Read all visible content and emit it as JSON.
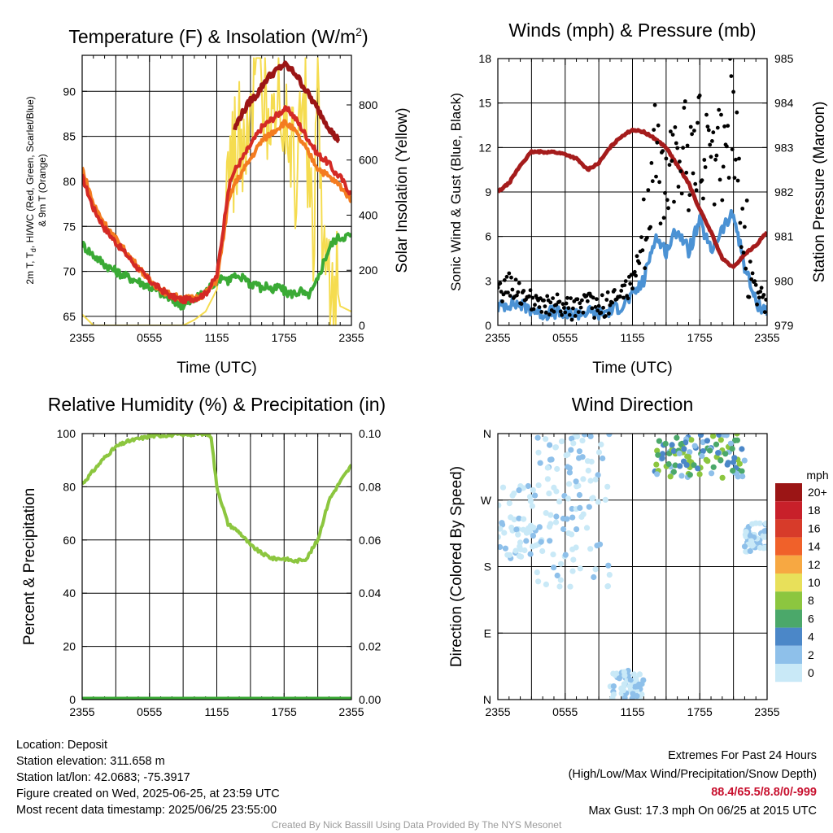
{
  "chart_data": [
    {
      "type": "line",
      "title": "Temperature (F) & Insolation (W/m2)",
      "xlabel": "Time (UTC)",
      "ylabel": "2m T, Td, HI/WC (Red, Green, Scarlet/Blue) & 9m T (Orange)",
      "ylabel_right": "Solar Insolation (Yellow)",
      "x_ticks": [
        "2355",
        "0555",
        "1155",
        "1755",
        "2355"
      ],
      "y_ticks": [
        65,
        70,
        75,
        80,
        85,
        90
      ],
      "y2_ticks": [
        0,
        200,
        400,
        600,
        800
      ],
      "ylim": [
        64,
        94
      ],
      "y2lim": [
        0,
        980
      ],
      "grid": true,
      "colors": {
        "temp2m": "#d42a25",
        "dewpoint": "#3aaa35",
        "heat_index": "#9b1515",
        "temp9m": "#f47c20",
        "insolation": "#f5dc50"
      },
      "x_hours": [
        0,
        1,
        2,
        3,
        4,
        5,
        6,
        7,
        8,
        9,
        10,
        11,
        12,
        12.5,
        13,
        13.5,
        14,
        14.5,
        15,
        15.5,
        16,
        16.5,
        17,
        17.5,
        18,
        18.5,
        19,
        19.5,
        20,
        20.5,
        21,
        21.5,
        22,
        22.5,
        23,
        24
      ],
      "series": [
        {
          "name": "2m T",
          "values": [
            80.5,
            77.0,
            74.8,
            73.2,
            71.8,
            70.3,
            69.0,
            68.0,
            67.2,
            66.8,
            67.0,
            67.5,
            69.5,
            74.0,
            79.0,
            81.0,
            82.0,
            83.0,
            84.0,
            85.0,
            86.0,
            86.5,
            87.0,
            87.5,
            88.0,
            87.8,
            87.0,
            86.0,
            85.0,
            84.0,
            83.0,
            82.5,
            82.0,
            81.0,
            80.5,
            78.5
          ]
        },
        {
          "name": "Td",
          "values": [
            73.0,
            71.8,
            70.8,
            70.0,
            69.4,
            68.9,
            68.3,
            67.6,
            66.8,
            66.2,
            66.8,
            67.8,
            69.0,
            69.5,
            69.0,
            69.5,
            69.0,
            69.5,
            68.5,
            68.8,
            68.0,
            68.5,
            67.8,
            68.3,
            67.8,
            67.5,
            67.6,
            67.8,
            67.2,
            67.8,
            69.0,
            71.0,
            72.5,
            73.5,
            73.8,
            74.0
          ]
        },
        {
          "name": "HI/WC",
          "values": [
            null,
            null,
            null,
            null,
            null,
            null,
            null,
            null,
            null,
            null,
            null,
            null,
            null,
            null,
            null,
            85.5,
            87.0,
            88.0,
            89.0,
            89.5,
            90.5,
            91.5,
            92.0,
            92.5,
            93.0,
            92.5,
            92.0,
            91.0,
            90.0,
            89.0,
            88.0,
            87.0,
            86.0,
            85.0,
            84.5,
            null
          ]
        },
        {
          "name": "9m T",
          "values": [
            81.5,
            77.5,
            75.3,
            73.6,
            72.0,
            70.5,
            69.0,
            68.0,
            67.3,
            67.0,
            67.0,
            67.5,
            69.0,
            73.0,
            77.5,
            79.5,
            80.5,
            81.5,
            82.5,
            83.5,
            84.5,
            85.0,
            85.5,
            86.0,
            86.5,
            86.2,
            85.5,
            84.5,
            83.5,
            82.5,
            81.5,
            81.0,
            80.5,
            80.0,
            79.5,
            78.0
          ]
        },
        {
          "name": "Solar Insolation",
          "axis": "right",
          "values": [
            40,
            0,
            0,
            0,
            0,
            0,
            0,
            0,
            0,
            0,
            20,
            50,
            130,
            300,
            480,
            560,
            640,
            700,
            780,
            820,
            860,
            800,
            940,
            900,
            850,
            700,
            560,
            900,
            720,
            240,
            800,
            200,
            120,
            180,
            70,
            50
          ]
        }
      ]
    },
    {
      "type": "line",
      "title": "Winds (mph) & Pressure (mb)",
      "xlabel": "Time (UTC)",
      "ylabel": "Sonic Wind & Gust (Blue, Black)",
      "ylabel_right": "Station Pressure (Maroon)",
      "x_ticks": [
        "2355",
        "0555",
        "1155",
        "1755",
        "2355"
      ],
      "y_ticks": [
        0,
        3,
        6,
        9,
        12,
        15,
        18
      ],
      "y2_ticks": [
        979,
        980,
        981,
        982,
        983,
        984,
        985
      ],
      "ylim": [
        0,
        18
      ],
      "y2lim": [
        979,
        985
      ],
      "grid": true,
      "colors": {
        "wind": "#4b92d4",
        "gust": "#000000",
        "pressure": "#a51c1c"
      },
      "x_hours": [
        0,
        1,
        2,
        3,
        4,
        5,
        6,
        7,
        8,
        9,
        10,
        11,
        12,
        13,
        14,
        15,
        16,
        17,
        18,
        19,
        20,
        21,
        22,
        23,
        24
      ],
      "series": [
        {
          "name": "Sonic Wind",
          "values": [
            1.2,
            1.5,
            1.4,
            1.1,
            0.8,
            0.9,
            0.7,
            0.8,
            0.9,
            0.8,
            1.0,
            1.3,
            2.0,
            3.0,
            6.0,
            5.0,
            6.5,
            5.0,
            7.0,
            5.0,
            6.5,
            7.5,
            4.0,
            1.5,
            1.0
          ]
        },
        {
          "name": "Gust",
          "values": [
            2.0,
            2.8,
            2.2,
            1.5,
            1.2,
            1.4,
            1.1,
            1.2,
            1.4,
            1.2,
            1.5,
            2.0,
            3.0,
            6.0,
            10.0,
            11.0,
            12.5,
            11.0,
            12.0,
            11.0,
            12.0,
            13.5,
            6.5,
            2.0,
            1.5
          ]
        },
        {
          "name": "Station Pressure",
          "axis": "right",
          "values": [
            982.0,
            982.2,
            982.6,
            982.9,
            982.9,
            982.9,
            982.85,
            982.75,
            982.5,
            982.65,
            983.0,
            983.25,
            983.4,
            983.35,
            983.2,
            983.0,
            982.6,
            982.2,
            981.6,
            981.1,
            980.5,
            980.3,
            980.6,
            980.8,
            981.1
          ]
        }
      ]
    },
    {
      "type": "line",
      "title": "Relative Humidity (%) & Precipitation (in)",
      "xlabel": "",
      "ylabel": "Percent & Precipitation",
      "x_ticks": [
        "2355",
        "0555",
        "1155",
        "1755",
        "2355"
      ],
      "y_ticks": [
        0,
        20,
        40,
        60,
        80,
        100
      ],
      "y2_ticks": [
        "0.00",
        "0.02",
        "0.04",
        "0.06",
        "0.08",
        "0.10"
      ],
      "ylim": [
        0,
        100
      ],
      "y2lim": [
        0,
        0.1
      ],
      "grid": true,
      "colors": {
        "rh": "#8cc63f",
        "precip": "#3aaa35"
      },
      "x_hours": [
        0,
        1,
        2,
        3,
        4,
        5,
        6,
        7,
        8,
        9,
        10,
        11,
        11.5,
        12,
        13,
        14,
        15,
        16,
        17,
        18,
        19,
        20,
        21,
        22,
        23,
        24
      ],
      "series": [
        {
          "name": "Relative Humidity",
          "values": [
            81,
            86,
            91,
            95,
            97,
            98,
            99,
            99.3,
            99.5,
            99.7,
            99.8,
            100,
            99,
            80,
            66,
            63,
            58,
            55,
            53,
            53,
            52,
            53,
            60,
            75,
            82,
            88
          ]
        },
        {
          "name": "Precipitation",
          "axis": "right",
          "values": [
            0,
            0,
            0,
            0,
            0,
            0,
            0,
            0,
            0,
            0,
            0,
            0,
            0,
            0,
            0,
            0,
            0,
            0,
            0,
            0,
            0,
            0,
            0,
            0,
            0,
            0
          ]
        }
      ]
    },
    {
      "type": "scatter",
      "title": "Wind Direction",
      "ylabel": "Direction (Colored By Speed)",
      "x_ticks": [
        "2355",
        "0555",
        "1155",
        "1755",
        "2355"
      ],
      "y_ticks": [
        "N",
        "E",
        "S",
        "W",
        "N"
      ],
      "ylim": [
        0,
        360
      ],
      "grid": true,
      "legend": {
        "title": "mph",
        "position": "right",
        "labels": [
          "20+",
          "18",
          "16",
          "14",
          "12",
          "10",
          "8",
          "6",
          "4",
          "2",
          "0"
        ],
        "colors": [
          "#9b1515",
          "#c8202a",
          "#d73b2a",
          "#f0612a",
          "#f7a842",
          "#e8e05a",
          "#8cc63f",
          "#4ba86a",
          "#4b87c8",
          "#8ec0ea",
          "#c9e9f7"
        ]
      },
      "clusters": [
        {
          "hours": [
            0,
            3.5
          ],
          "dir": [
            190,
            290
          ],
          "speed": "0-2"
        },
        {
          "hours": [
            3.5,
            10
          ],
          "dir": [
            150,
            360
          ],
          "speed": "0-2"
        },
        {
          "hours": [
            10,
            13
          ],
          "dir": [
            0,
            40
          ],
          "speed": "0-2"
        },
        {
          "hours": [
            14,
            22
          ],
          "dir": [
            300,
            360
          ],
          "speed": "4-8"
        },
        {
          "hours": [
            22,
            24
          ],
          "dir": [
            200,
            240
          ],
          "speed": "0-2"
        }
      ]
    }
  ],
  "meta": {
    "location": "Location: Deposit",
    "elevation": "Station elevation: 311.658 m",
    "latlon": "Station lat/lon: 42.0683; -75.3917",
    "created": "Figure created on Wed, 2025-06-25, at 23:59 UTC",
    "recent": "Most recent data timestamp: 2025/06/25 23:55:00"
  },
  "extremes": {
    "heading": "Extremes For Past 24 Hours",
    "subheading": "(High/Low/Max Wind/Precipitation/Snow Depth)",
    "values": "88.4/65.5/8.8/0/-999",
    "gust": "Max Gust: 17.3 mph On 06/25 at 2015 UTC"
  },
  "credit": "Created By Nick Bassill Using Data Provided By The NYS Mesonet"
}
